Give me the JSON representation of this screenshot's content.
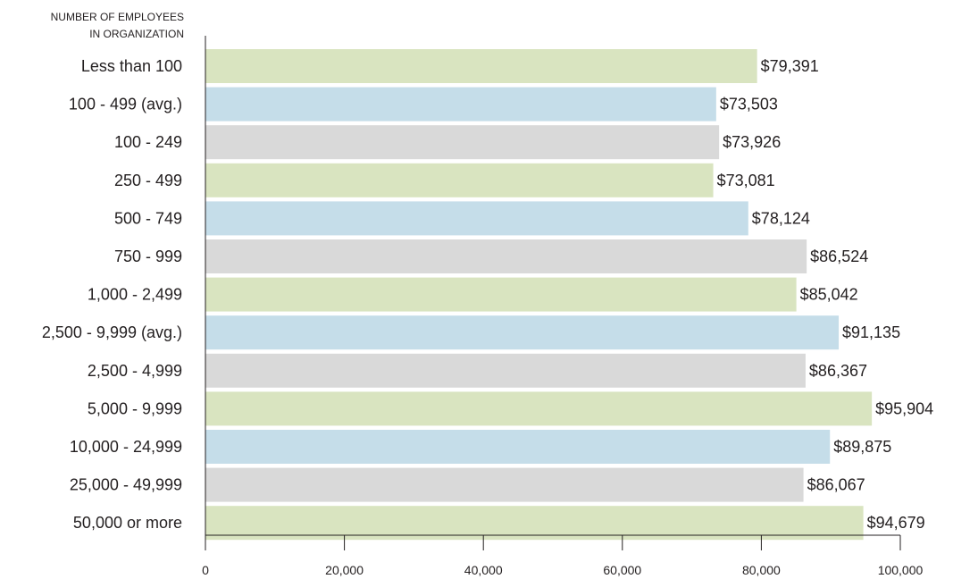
{
  "chart_data": {
    "type": "bar",
    "orientation": "horizontal",
    "title": "",
    "ylabel_lines": [
      "NUMBER OF EMPLOYEES",
      "IN ORGANIZATION"
    ],
    "xlabel": "",
    "categories": [
      "Less than 100",
      "100 - 499 (avg.)",
      "100 - 249",
      "250 - 499",
      "500 - 749",
      "750 - 999",
      "1,000 - 2,499",
      "2,500 - 9,999 (avg.)",
      "2,500 - 4,999",
      "5,000 - 9,999",
      "10,000 - 24,999",
      "25,000 - 49,999",
      "50,000 or more"
    ],
    "values": [
      79391,
      73503,
      73926,
      73081,
      78124,
      86524,
      85042,
      91135,
      86367,
      95904,
      89875,
      86067,
      94679
    ],
    "value_labels": [
      "$79,391",
      "$73,503",
      "$73,926",
      "$73,081",
      "$78,124",
      "$86,524",
      "$85,042",
      "$91,135",
      "$86,367",
      "$95,904",
      "$89,875",
      "$86,067",
      "$94,679"
    ],
    "xlim": [
      0,
      100000
    ],
    "xticks": [
      0,
      20000,
      40000,
      60000,
      80000,
      100000
    ],
    "xtick_labels": [
      "0",
      "20,000",
      "40,000",
      "60,000",
      "80,000",
      "100,000"
    ],
    "bar_colors": [
      "#d9e4c0",
      "#c5dde9",
      "#d9d9d9"
    ],
    "grid": false,
    "legend": "none"
  }
}
